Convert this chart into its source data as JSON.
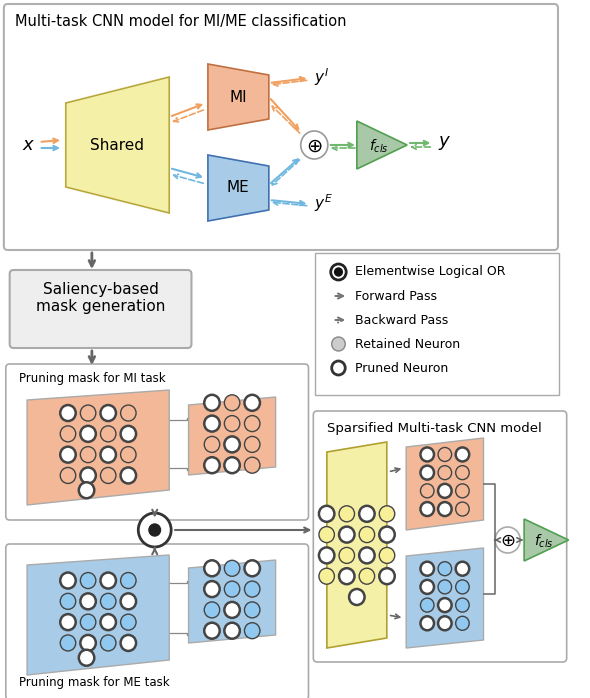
{
  "title_top": "Multi-task CNN model for MI/ME classification",
  "title_bottom_left": "Saliency-based\nmask generation",
  "title_bottom_right": "Sparsified Multi-task CNN model",
  "label_mi": "MI",
  "label_me": "ME",
  "label_shared": "Shared",
  "label_fcls": "$f_{cls}$",
  "label_x": "$x$",
  "label_y": "$y$",
  "label_yI": "$y^I$",
  "label_yE": "$y^E$",
  "label_mi_mask": "Pruning mask for MI task",
  "label_me_mask": "Pruning mask for ME task",
  "color_shared": "#f5f0a8",
  "color_mi": "#f2b898",
  "color_me": "#a8cce8",
  "color_fcls": "#a8c8a8",
  "color_orange_arrow": "#f0a060",
  "color_blue_arrow": "#70b8e0",
  "color_green_arrow": "#70b870",
  "color_gray_arrow": "#888888",
  "color_neuron_orange": "#f2b898",
  "color_neuron_blue": "#90c8f0",
  "color_neuron_yellow": "#f8f098",
  "color_neuron_gray": "#c8c8c8"
}
